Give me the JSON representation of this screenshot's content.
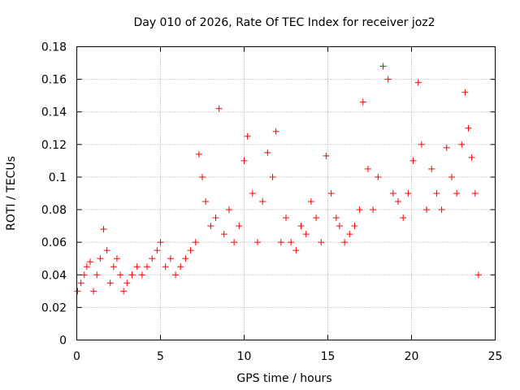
{
  "chart_data": {
    "type": "scatter",
    "title": "Day 010 of 2026, Rate Of TEC Index for receiver joz2",
    "xlabel": "GPS time / hours",
    "ylabel": "ROTI / TECUs",
    "xlim": [
      0,
      25
    ],
    "ylim": [
      0,
      0.18
    ],
    "xticks": [
      0,
      5,
      10,
      15,
      20,
      25
    ],
    "xtick_labels": [
      "0",
      "5",
      "10",
      "15",
      "20",
      "25"
    ],
    "yticks": [
      0,
      0.02,
      0.04,
      0.06,
      0.08,
      0.1,
      0.12,
      0.14,
      0.16,
      0.18
    ],
    "ytick_labels": [
      "0",
      "0.02",
      "0.04",
      "0.06",
      "0.08",
      "0.1",
      "0.12",
      "0.14",
      "0.16",
      "0.18"
    ],
    "grid": true,
    "marker": "+",
    "color": "#ff0000",
    "series": [
      {
        "name": "ROTI",
        "x": [
          0.05,
          0.25,
          0.45,
          0.6,
          0.8,
          1.0,
          1.2,
          1.4,
          1.6,
          1.8,
          2.0,
          2.2,
          2.4,
          2.6,
          2.8,
          3.0,
          3.3,
          3.6,
          3.9,
          4.2,
          4.5,
          4.8,
          5.0,
          5.3,
          5.6,
          5.9,
          6.2,
          6.5,
          6.8,
          7.1,
          7.3,
          7.5,
          7.7,
          8.0,
          8.3,
          8.5,
          8.8,
          9.1,
          9.4,
          9.7,
          10.0,
          10.2,
          10.5,
          10.8,
          11.1,
          11.4,
          11.7,
          11.9,
          12.2,
          12.5,
          12.8,
          13.1,
          13.4,
          13.7,
          14.0,
          14.3,
          14.6,
          14.9,
          15.2,
          15.5,
          15.7,
          16.0,
          16.3,
          16.6,
          16.9,
          17.1,
          17.4,
          17.7,
          18.0,
          18.3,
          18.6,
          18.9,
          19.2,
          19.5,
          19.8,
          20.1,
          20.4,
          20.6,
          20.9,
          21.2,
          21.5,
          21.8,
          22.1,
          22.4,
          22.7,
          23.0,
          23.2,
          23.4,
          23.6,
          23.8,
          24.0
        ],
        "y": [
          0.03,
          0.035,
          0.04,
          0.045,
          0.048,
          0.03,
          0.04,
          0.05,
          0.068,
          0.055,
          0.035,
          0.045,
          0.05,
          0.04,
          0.03,
          0.035,
          0.04,
          0.045,
          0.04,
          0.045,
          0.05,
          0.055,
          0.06,
          0.045,
          0.05,
          0.04,
          0.045,
          0.05,
          0.055,
          0.06,
          0.114,
          0.1,
          0.085,
          0.07,
          0.075,
          0.142,
          0.065,
          0.08,
          0.06,
          0.07,
          0.11,
          0.125,
          0.09,
          0.06,
          0.085,
          0.115,
          0.1,
          0.128,
          0.06,
          0.075,
          0.06,
          0.055,
          0.07,
          0.065,
          0.085,
          0.075,
          0.06,
          0.113,
          0.09,
          0.075,
          0.07,
          0.06,
          0.065,
          0.07,
          0.08,
          0.146,
          0.105,
          0.08,
          0.1,
          0.168,
          0.16,
          0.09,
          0.085,
          0.075,
          0.09,
          0.11,
          0.158,
          0.12,
          0.08,
          0.105,
          0.09,
          0.08,
          0.118,
          0.1,
          0.09,
          0.12,
          0.152,
          0.13,
          0.112,
          0.09,
          0.04
        ]
      }
    ]
  }
}
